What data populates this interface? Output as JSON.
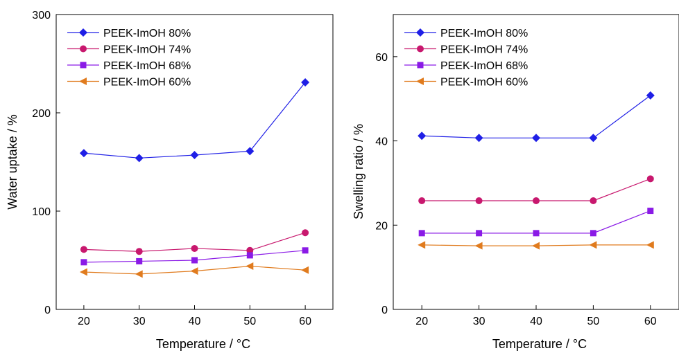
{
  "chart_data": [
    {
      "type": "line",
      "xlabel": "Temperature / °C",
      "ylabel": "Water uptake / %",
      "x": [
        20,
        30,
        40,
        50,
        60
      ],
      "xlim": [
        15,
        65
      ],
      "ylim": [
        0,
        300
      ],
      "xticks": [
        20,
        30,
        40,
        50,
        60
      ],
      "yticks": [
        0,
        100,
        200,
        300
      ],
      "legend_position": "top-left",
      "series": [
        {
          "name": "PEEK-ImOH 80%",
          "marker": "diamond",
          "color": "#1f1fe6",
          "values": [
            159,
            154,
            157,
            161,
            231
          ]
        },
        {
          "name": "PEEK-ImOH 74%",
          "marker": "circle",
          "color": "#c8186e",
          "values": [
            61,
            59,
            62,
            60,
            78
          ]
        },
        {
          "name": "PEEK-ImOH 68%",
          "marker": "square",
          "color": "#8a1ae6",
          "values": [
            48,
            49,
            50,
            55,
            60
          ]
        },
        {
          "name": "PEEK-ImOH 60%",
          "marker": "triangle-left",
          "color": "#e07b1e",
          "values": [
            38,
            36,
            39,
            44,
            40
          ]
        }
      ]
    },
    {
      "type": "line",
      "xlabel": "Temperature / °C",
      "ylabel": "Swelling ratio / %",
      "x": [
        20,
        30,
        40,
        50,
        60
      ],
      "xlim": [
        15,
        65
      ],
      "ylim": [
        0,
        70
      ],
      "xticks": [
        20,
        30,
        40,
        50,
        60
      ],
      "yticks": [
        0,
        20,
        40,
        60
      ],
      "legend_position": "top-left",
      "series": [
        {
          "name": "PEEK-ImOH 80%",
          "marker": "diamond",
          "color": "#1f1fe6",
          "values": [
            41.2,
            40.7,
            40.7,
            40.7,
            50.8
          ]
        },
        {
          "name": "PEEK-ImOH 74%",
          "marker": "circle",
          "color": "#c8186e",
          "values": [
            25.8,
            25.8,
            25.8,
            25.8,
            31.0
          ]
        },
        {
          "name": "PEEK-ImOH 68%",
          "marker": "square",
          "color": "#8a1ae6",
          "values": [
            18.1,
            18.1,
            18.1,
            18.1,
            23.4
          ]
        },
        {
          "name": "PEEK-ImOH 60%",
          "marker": "triangle-left",
          "color": "#e07b1e",
          "values": [
            15.3,
            15.1,
            15.1,
            15.3,
            15.3
          ]
        }
      ]
    }
  ]
}
